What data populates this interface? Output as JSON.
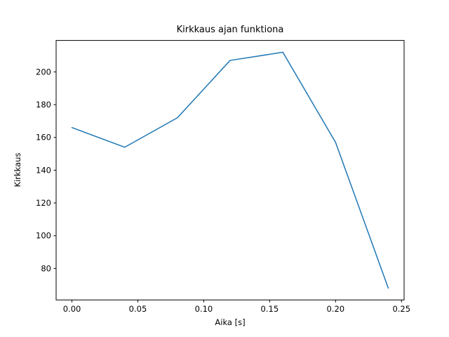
{
  "figure": {
    "background": "#ffffff"
  },
  "chart_data": {
    "type": "line",
    "title": "Kirkkaus ajan funktiona",
    "xlabel": "Aika [s]",
    "ylabel": "Kirkkaus",
    "x": [
      0.0,
      0.04,
      0.08,
      0.12,
      0.16,
      0.2,
      0.24
    ],
    "y": [
      166,
      154,
      172,
      207,
      212,
      157,
      68
    ],
    "series": [
      {
        "name": "Kirkkaus",
        "x": [
          0.0,
          0.04,
          0.08,
          0.12,
          0.16,
          0.2,
          0.24
        ],
        "values": [
          166,
          154,
          172,
          207,
          212,
          157,
          68
        ]
      }
    ],
    "xlim": [
      -0.012,
      0.252
    ],
    "ylim": [
      60.8,
      219.2
    ],
    "xticks": [
      0.0,
      0.05,
      0.1,
      0.15,
      0.2,
      0.25
    ],
    "xtick_labels": [
      "0.00",
      "0.05",
      "0.10",
      "0.15",
      "0.20",
      "0.25"
    ],
    "yticks": [
      80,
      100,
      120,
      140,
      160,
      180,
      200
    ],
    "ytick_labels": [
      "80",
      "100",
      "120",
      "140",
      "160",
      "180",
      "200"
    ],
    "line_color": "#1f77b4",
    "spine_color": "#000000",
    "grid": false,
    "legend": null
  }
}
